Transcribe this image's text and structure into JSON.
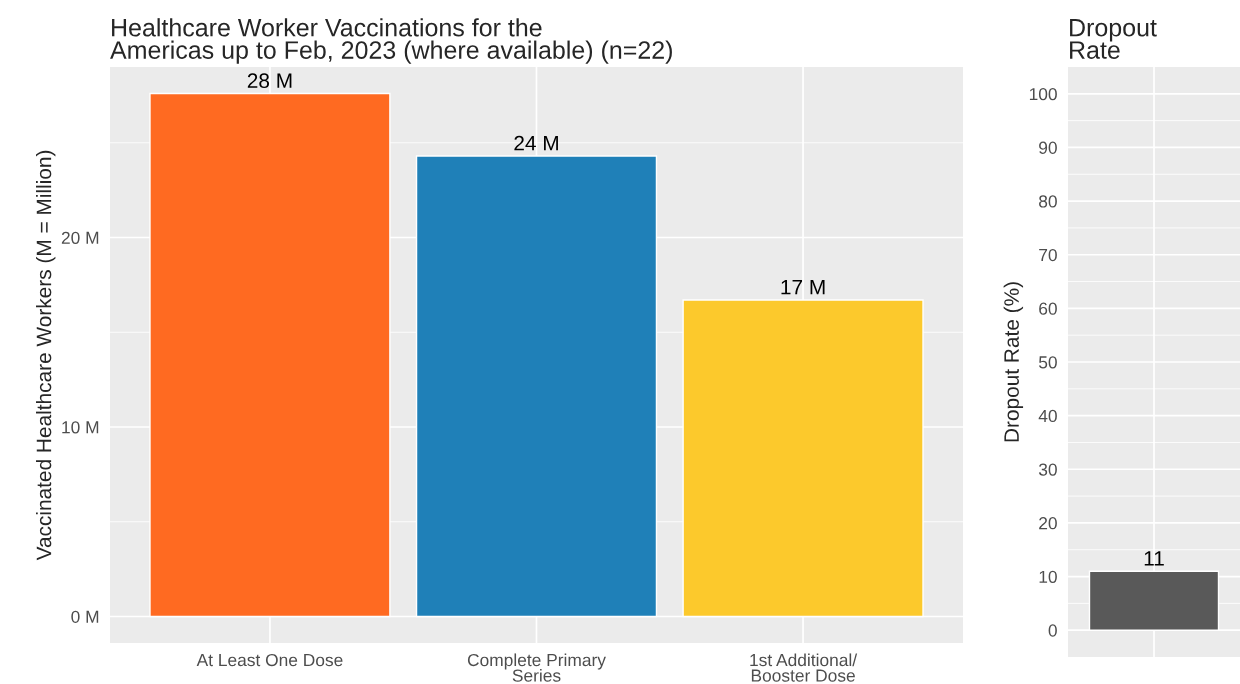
{
  "chart_data": [
    {
      "type": "bar",
      "title": "Healthcare Worker Vaccinations for the\nAmericas up to Feb, 2023 (where available) (n=22)",
      "ylabel": "Vaccinated Healthcare Workers (M = Million)",
      "categories": [
        "At Least One Dose",
        "Complete Primary\nSeries",
        "1st Additional/\nBooster Dose"
      ],
      "values": [
        27.6,
        24.3,
        16.7
      ],
      "colors": [
        "#ff6a21",
        "#1f80b8",
        "#fcc92c"
      ],
      "value_labels": [
        "28 M",
        "24 M",
        "17 M"
      ],
      "ylim": [
        -1.4,
        29.0
      ],
      "yticks": [
        {
          "value": 0,
          "label": "0 M"
        },
        {
          "value": 10,
          "label": "10 M"
        },
        {
          "value": 20,
          "label": "20 M"
        }
      ],
      "grid": true
    },
    {
      "type": "bar",
      "title": "Dropout\nRate",
      "ylabel": "Dropout Rate (%)",
      "categories": [
        null
      ],
      "values": [
        11
      ],
      "colors": [
        "#595959"
      ],
      "data_labels": true,
      "ylim": [
        -5,
        105
      ],
      "yticks": [
        0,
        10,
        20,
        30,
        40,
        50,
        60,
        70,
        80,
        90,
        100
      ],
      "grid": true
    }
  ]
}
